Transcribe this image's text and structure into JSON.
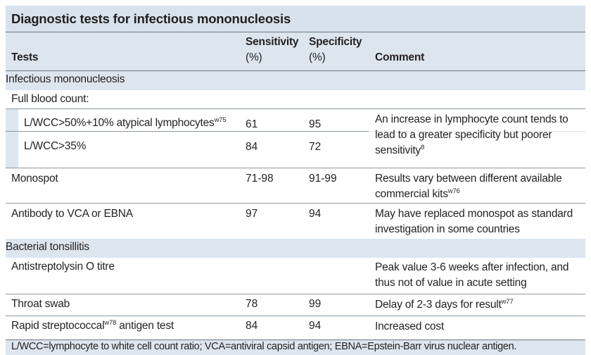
{
  "title": "Diagnostic tests for infectious mononucleosis",
  "headers": {
    "tests": "Tests",
    "sensitivity_1": "Sensitivity",
    "sensitivity_2": "(%)",
    "specificity_1": "Specificity",
    "specificity_2": "(%)",
    "comment": "Comment"
  },
  "sections": {
    "im": "Infectious mononucleosis",
    "bt": "Bacterial tonsillitis"
  },
  "rows": {
    "fbc": {
      "test": "Full blood count:"
    },
    "lwcc50": {
      "test": "L/WCC>50%+10% atypical lymphocytes",
      "sup": "w75",
      "sensitivity": "61",
      "specificity": "95"
    },
    "lwcc35": {
      "test": "L/WCC>35%",
      "sensitivity": "84",
      "specificity": "72"
    },
    "lwcc_comment": {
      "text": "An increase in lymphocyte count tends to lead to a greater specificity but poorer sensitivity",
      "sup": "8"
    },
    "monospot": {
      "test": "Monospot",
      "sensitivity": "71-98",
      "specificity": "91-99",
      "comment": "Results vary between different available commercial kits",
      "sup": "w76"
    },
    "antibody": {
      "test": "Antibody to VCA or EBNA",
      "sensitivity": "97",
      "specificity": "94",
      "comment": "May have replaced monospot as standard investigation in some countries"
    },
    "aso": {
      "test": "Antistreptolysin O titre",
      "comment": "Peak value 3-6 weeks after infection, and thus not of value in acute setting"
    },
    "throat": {
      "test": "Throat swab",
      "sensitivity": "78",
      "specificity": "99",
      "comment": "Delay of 2-3 days for result",
      "sup": "w77"
    },
    "rapid": {
      "test_pre": "Rapid streptococcal",
      "sup": "w78",
      "test_post": " antigen test",
      "sensitivity": "84",
      "specificity": "94",
      "comment": "Increased cost"
    }
  },
  "footnote": "L/WCC=lymphocyte to white cell count ratio; VCA=antiviral capsid antigen; EBNA=Epstein-Barr virus nuclear antigen."
}
